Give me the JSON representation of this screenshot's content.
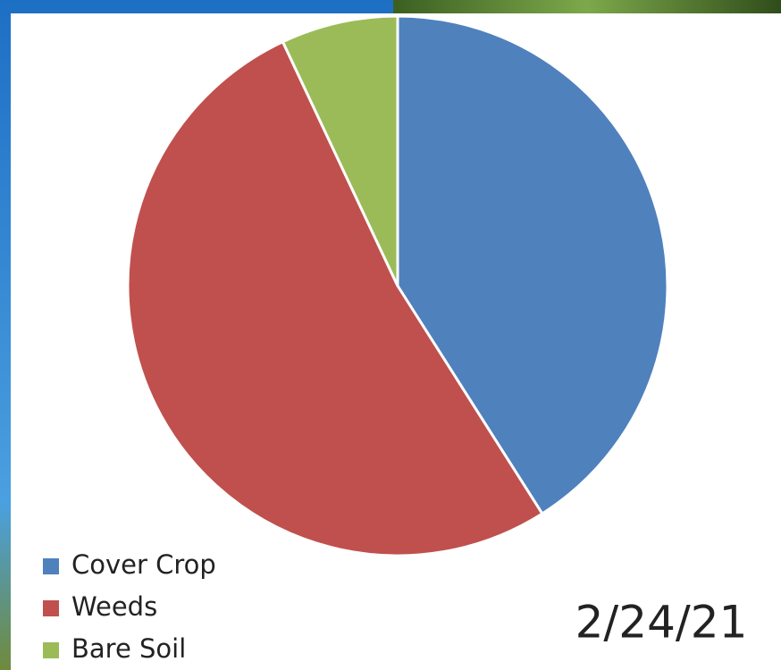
{
  "chart_data": {
    "type": "pie",
    "categories": [
      "Cover Crop",
      "Weeds",
      "Bare Soil"
    ],
    "values": [
      41,
      52,
      7
    ],
    "colors": [
      "#4f81bd",
      "#c0504d",
      "#9bbb59"
    ],
    "annotation": "2/24/21"
  }
}
